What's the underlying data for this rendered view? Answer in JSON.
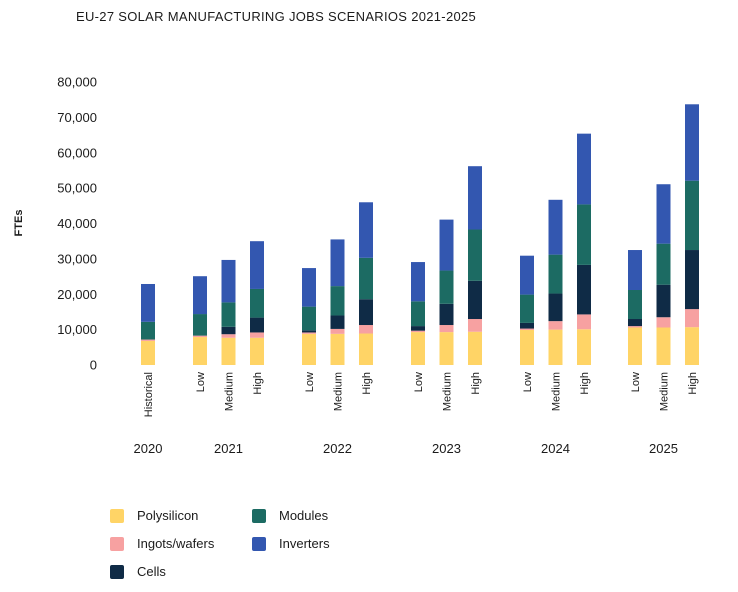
{
  "chart_data": {
    "type": "bar",
    "stacked": true,
    "title": "EU-27 SOLAR MANUFACTURING JOBS SCENARIOS 2021-2025",
    "ylabel": "FTEs",
    "ylim": [
      0,
      80000
    ],
    "yticks": [
      "0",
      "10,000",
      "20,000",
      "30,000",
      "40,000",
      "50,000",
      "60,000",
      "70,000",
      "80,000"
    ],
    "groups": [
      {
        "label": "2020",
        "categories": [
          "Historical"
        ]
      },
      {
        "label": "2021",
        "categories": [
          "Low",
          "Medium",
          "High"
        ]
      },
      {
        "label": "2022",
        "categories": [
          "Low",
          "Medium",
          "High"
        ]
      },
      {
        "label": "2023",
        "categories": [
          "Low",
          "Medium",
          "High"
        ]
      },
      {
        "label": "2024",
        "categories": [
          "Low",
          "Medium",
          "High"
        ]
      },
      {
        "label": "2025",
        "categories": [
          "Low",
          "Medium",
          "High"
        ]
      }
    ],
    "series": [
      {
        "name": "Polysilicon",
        "color": "#FFD466",
        "values": [
          6800,
          7900,
          7700,
          7700,
          8800,
          8800,
          8900,
          9300,
          9300,
          9400,
          9900,
          10000,
          10100,
          10600,
          10600,
          10700
        ]
      },
      {
        "name": "Ingots/wafers",
        "color": "#F7A1A1",
        "values": [
          400,
          400,
          1000,
          1500,
          400,
          1400,
          2400,
          400,
          2000,
          3600,
          400,
          2400,
          4200,
          400,
          2900,
          5100
        ]
      },
      {
        "name": "Cells",
        "color": "#0F2B46",
        "values": [
          0,
          0,
          2100,
          4200,
          600,
          3800,
          7300,
          1300,
          6000,
          10800,
          1600,
          7800,
          14000,
          2000,
          9200,
          16700
        ]
      },
      {
        "name": "Modules",
        "color": "#1C6B63",
        "values": [
          5000,
          6100,
          6900,
          8100,
          6700,
          8300,
          11700,
          7000,
          9400,
          14500,
          8000,
          11000,
          17100,
          8200,
          11600,
          19600
        ]
      },
      {
        "name": "Inverters",
        "color": "#3357B0",
        "values": [
          10700,
          10700,
          12000,
          13500,
          10900,
          13200,
          15700,
          11100,
          14400,
          17900,
          11000,
          15500,
          20000,
          11300,
          16800,
          21600
        ]
      }
    ],
    "legend": {
      "position": "bottom-left"
    }
  }
}
